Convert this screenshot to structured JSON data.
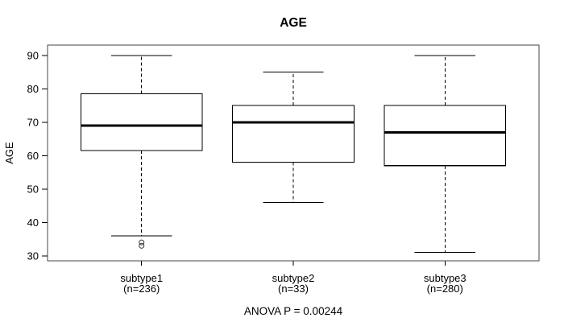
{
  "page": {
    "background_color": "#ffffff",
    "text_color": "#000000"
  },
  "chart_data": {
    "type": "boxplot",
    "title": "AGE",
    "ylabel": "AGE",
    "caption": "ANOVA P = 0.00244",
    "y_ticks": [
      30,
      40,
      50,
      60,
      70,
      80,
      90
    ],
    "ylim": [
      28.5,
      93.1
    ],
    "xlim": [
      0.38,
      3.62
    ],
    "grid": false,
    "legend": "none",
    "colors": {
      "frame": "#444444",
      "box_stroke": "#000000",
      "median": "#000000",
      "whisker": "#000000",
      "outlier": "#333333",
      "background": "#ffffff"
    },
    "groups": [
      {
        "position": 1,
        "label": "subtype1",
        "sublabel": "(n=236)",
        "stats": {
          "whisker_low": 36,
          "q1": 61.5,
          "median": 69,
          "q3": 78.5,
          "whisker_high": 90
        },
        "outliers": [
          34,
          33
        ]
      },
      {
        "position": 2,
        "label": "subtype2",
        "sublabel": "(n=33)",
        "stats": {
          "whisker_low": 46,
          "q1": 58,
          "median": 70,
          "q3": 75,
          "whisker_high": 85
        },
        "outliers": []
      },
      {
        "position": 3,
        "label": "subtype3",
        "sublabel": "(n=280)",
        "stats": {
          "whisker_low": 31,
          "q1": 57,
          "median": 67,
          "q3": 75,
          "whisker_high": 90
        },
        "outliers": []
      }
    ]
  }
}
